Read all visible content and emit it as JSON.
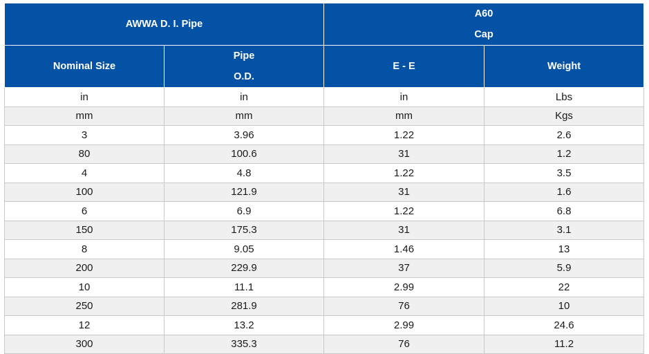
{
  "header": {
    "group_left": "AWWA D. I. Pipe",
    "group_right_line1": "A60",
    "group_right_line2": "Cap",
    "col_nominal": "Nominal Size",
    "col_pipe_line1": "Pipe",
    "col_pipe_line2": "O.D.",
    "col_ee": "E - E",
    "col_weight": "Weight"
  },
  "rows": [
    [
      "in",
      "in",
      "in",
      "Lbs"
    ],
    [
      "mm",
      "mm",
      "mm",
      "Kgs"
    ],
    [
      "3",
      "3.96",
      "1.22",
      "2.6"
    ],
    [
      "80",
      "100.6",
      "31",
      "1.2"
    ],
    [
      "4",
      "4.8",
      "1.22",
      "3.5"
    ],
    [
      "100",
      "121.9",
      "31",
      "1.6"
    ],
    [
      "6",
      "6.9",
      "1.22",
      "6.8"
    ],
    [
      "150",
      "175.3",
      "31",
      "3.1"
    ],
    [
      "8",
      "9.05",
      "1.46",
      "13"
    ],
    [
      "200",
      "229.9",
      "37",
      "5.9"
    ],
    [
      "10",
      "11.1",
      "2.99",
      "22"
    ],
    [
      "250",
      "281.9",
      "76",
      "10"
    ],
    [
      "12",
      "13.2",
      "2.99",
      "24.6"
    ],
    [
      "300",
      "335.3",
      "76",
      "11.2"
    ]
  ],
  "colors": {
    "header_bg": "#0452a6",
    "header_text": "#ffffff",
    "row_alt_bg": "#f0f0f0",
    "grid": "#c8c8c8"
  }
}
